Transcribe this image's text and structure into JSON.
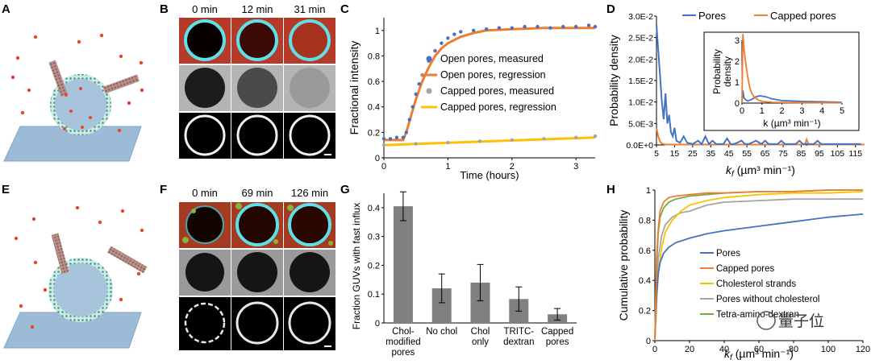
{
  "figure": {
    "panel_letters": [
      "A",
      "B",
      "C",
      "D",
      "E",
      "F",
      "G",
      "H"
    ],
    "watermark": "量子位",
    "colors": {
      "pores": "#4472C4",
      "capped": "#ED7D31",
      "capped_measured": "#A5A5A5",
      "capped_regression": "#FFC000",
      "chol_strands": "#FFC000",
      "no_chol": "#A5A5A5",
      "amino": "#70AD47",
      "bar": "#808080"
    }
  },
  "panel_b": {
    "times": [
      "0 min",
      "12 min",
      "31 min"
    ]
  },
  "panel_f": {
    "times": [
      "0 min",
      "69 min",
      "126 min"
    ]
  },
  "chart_data": [
    {
      "id": "C",
      "type": "line",
      "xlabel": "Time (hours)",
      "ylabel": "Fractional intensity",
      "xlim": [
        0,
        3.3
      ],
      "ylim": [
        0,
        1.1
      ],
      "xticks": [
        0,
        1,
        2,
        3
      ],
      "yticks": [
        0,
        0.2,
        0.4,
        0.6,
        0.8,
        1
      ],
      "series": [
        {
          "name": "Open pores, measured",
          "style": "markers",
          "x": [
            0.0,
            0.1,
            0.2,
            0.3,
            0.35,
            0.4,
            0.45,
            0.5,
            0.55,
            0.6,
            0.7,
            0.8,
            0.9,
            1.0,
            1.1,
            1.2,
            1.4,
            1.6,
            1.8,
            2.0,
            2.2,
            2.4,
            2.6,
            2.8,
            3.0,
            3.2,
            3.3
          ],
          "y": [
            0.15,
            0.15,
            0.16,
            0.16,
            0.2,
            0.3,
            0.4,
            0.5,
            0.58,
            0.65,
            0.76,
            0.84,
            0.9,
            0.94,
            0.97,
            0.99,
            1.0,
            1.01,
            1.02,
            1.02,
            1.03,
            1.03,
            1.02,
            1.03,
            1.03,
            1.04,
            1.03
          ]
        },
        {
          "name": "Open pores, regression",
          "style": "line",
          "x": [
            0.0,
            0.3,
            0.35,
            0.4,
            0.5,
            0.6,
            0.7,
            0.8,
            0.9,
            1.0,
            1.2,
            1.4,
            1.6,
            2.0,
            2.5,
            3.0,
            3.3
          ],
          "y": [
            0.14,
            0.14,
            0.2,
            0.29,
            0.46,
            0.6,
            0.71,
            0.8,
            0.86,
            0.9,
            0.95,
            0.98,
            1.0,
            1.01,
            1.02,
            1.02,
            1.02
          ]
        },
        {
          "name": "Capped pores, measured",
          "style": "markers",
          "x": [
            0.0,
            0.5,
            1.0,
            1.5,
            2.0,
            2.5,
            3.0,
            3.3
          ],
          "y": [
            0.1,
            0.11,
            0.12,
            0.13,
            0.14,
            0.15,
            0.16,
            0.17
          ]
        },
        {
          "name": "Capped pores, regression",
          "style": "line",
          "x": [
            0.0,
            3.3
          ],
          "y": [
            0.1,
            0.16
          ]
        }
      ]
    },
    {
      "id": "D",
      "type": "line",
      "xlabel": "k_f (µm³ min⁻¹)",
      "ylabel": "Probability density",
      "legend": "top-right",
      "xlim": [
        5,
        120
      ],
      "ylim": [
        0,
        0.03
      ],
      "xticks": [
        5,
        15,
        25,
        35,
        45,
        55,
        65,
        75,
        85,
        95,
        105,
        115
      ],
      "yticks": [
        "0.0E+0",
        "5.0E-3",
        "1.0E-2",
        "1.5E-2",
        "2.0E-2",
        "2.5E-2",
        "3.0E-2"
      ],
      "series": [
        {
          "name": "Pores",
          "x": [
            5,
            6,
            7,
            8,
            9,
            10,
            11,
            12,
            13,
            14,
            15,
            16,
            18,
            20,
            22,
            25,
            28,
            30,
            32,
            34,
            36,
            38,
            42,
            44,
            46,
            48,
            52,
            54,
            56,
            60,
            63,
            65,
            67,
            72,
            74,
            76,
            82,
            84,
            86,
            88,
            92,
            94,
            96,
            100,
            105,
            110,
            115,
            118
          ],
          "y": [
            0.028,
            0.022,
            0.016,
            0.01,
            0.006,
            0.012,
            0.005,
            0.007,
            0.003,
            0.002,
            0.004,
            0.001,
            0.0005,
            0.002,
            0.0005,
            0.0002,
            0.001,
            0.0002,
            0.002,
            0.0002,
            0.001,
            0.0002,
            0.0002,
            0.0015,
            0.0002,
            0.0002,
            0.001,
            0.0002,
            0.0002,
            0.001,
            0.0002,
            0.001,
            0.0002,
            0.0002,
            0.001,
            0.0002,
            0.0002,
            0.001,
            0.0002,
            0.0002,
            0.0002,
            0.001,
            0.0002,
            0.0002,
            0.0002,
            0.0002,
            0.0002,
            0.0002
          ]
        },
        {
          "name": "Capped pores",
          "x": [
            5,
            6,
            7,
            8,
            10,
            15,
            20,
            30,
            50,
            80,
            87,
            88,
            89,
            90,
            95,
            110,
            120
          ],
          "y": [
            0.004,
            0.002,
            0.0008,
            0.0003,
            0.0001,
            0.0001,
            0.0001,
            0.0001,
            0.0001,
            0.0001,
            0.0001,
            0.0013,
            0.0001,
            0.0001,
            0.0001,
            0.0001,
            0.0001
          ]
        }
      ],
      "inset": {
        "xlabel": "k (µm³ min⁻¹)",
        "ylabel_line1": "Probability",
        "ylabel_line2": "density",
        "xlim": [
          0,
          5
        ],
        "ylim": [
          0,
          3
        ],
        "xticks": [
          0,
          1,
          2,
          3,
          4,
          5
        ],
        "yticks": [
          0,
          1,
          2,
          3
        ],
        "series": [
          {
            "name": "Pores",
            "x": [
              0,
              0.05,
              0.1,
              0.2,
              0.3,
              0.5,
              0.7,
              0.9,
              1.2,
              1.5,
              2,
              3,
              4,
              5
            ],
            "y": [
              0,
              0.6,
              0.25,
              0.15,
              0.1,
              0.18,
              0.3,
              0.35,
              0.3,
              0.2,
              0.12,
              0.08,
              0.06,
              0.04
            ]
          },
          {
            "name": "Capped pores",
            "x": [
              0,
              0.05,
              0.1,
              0.2,
              0.3,
              0.4,
              0.5,
              0.6,
              0.8,
              1,
              1.5,
              2,
              3,
              5
            ],
            "y": [
              0,
              3.3,
              2.6,
              1.8,
              1.2,
              0.7,
              0.45,
              0.3,
              0.15,
              0.08,
              0.04,
              0.03,
              0.02,
              0.01
            ]
          }
        ]
      }
    },
    {
      "id": "G",
      "type": "bar",
      "ylabel": "Fraction GUVs with fast influx",
      "ylim": [
        0,
        0.45
      ],
      "yticks": [
        0,
        0.1,
        0.2,
        0.3,
        0.4
      ],
      "categories": [
        [
          "Chol-",
          "modified",
          "pores"
        ],
        [
          "No chol"
        ],
        [
          "Chol",
          "only"
        ],
        [
          "TRITC-",
          "dextran"
        ],
        [
          "Capped",
          "pores"
        ]
      ],
      "values": [
        0.405,
        0.12,
        0.14,
        0.083,
        0.03
      ],
      "errors": [
        0.05,
        0.05,
        0.063,
        0.042,
        0.02
      ]
    },
    {
      "id": "H",
      "type": "line",
      "xlabel": "k_f (µm³ min⁻¹)",
      "ylabel": "Cumulative probability",
      "legend": "bottom-right",
      "xlim": [
        0,
        120
      ],
      "ylim": [
        0,
        1
      ],
      "xticks": [
        0,
        20,
        40,
        60,
        80,
        100,
        120
      ],
      "yticks": [
        0,
        0.2,
        0.4,
        0.6,
        0.8,
        1
      ],
      "series": [
        {
          "name": "Pores",
          "x": [
            0,
            1,
            2,
            3,
            5,
            8,
            12,
            20,
            30,
            40,
            60,
            80,
            100,
            120
          ],
          "y": [
            0,
            0.3,
            0.45,
            0.52,
            0.58,
            0.62,
            0.65,
            0.68,
            0.71,
            0.73,
            0.76,
            0.79,
            0.82,
            0.84
          ]
        },
        {
          "name": "Capped pores",
          "x": [
            0,
            1,
            2,
            3,
            5,
            8,
            12,
            20,
            30,
            40,
            60,
            80,
            100,
            120
          ],
          "y": [
            0,
            0.55,
            0.75,
            0.86,
            0.92,
            0.95,
            0.96,
            0.97,
            0.98,
            0.98,
            0.99,
            0.99,
            1.0,
            1.0
          ]
        },
        {
          "name": "Cholesterol strands",
          "x": [
            0,
            1,
            2,
            4,
            6,
            10,
            15,
            20,
            30,
            40,
            60,
            80,
            100,
            120
          ],
          "y": [
            0,
            0.25,
            0.45,
            0.62,
            0.72,
            0.8,
            0.86,
            0.9,
            0.93,
            0.95,
            0.97,
            0.98,
            0.98,
            0.99
          ]
        },
        {
          "name": "Pores without cholesterol",
          "x": [
            0,
            1,
            2,
            4,
            6,
            10,
            15,
            20,
            25,
            30,
            40,
            60,
            80,
            100,
            120
          ],
          "y": [
            0,
            0.35,
            0.55,
            0.7,
            0.77,
            0.82,
            0.85,
            0.86,
            0.88,
            0.9,
            0.92,
            0.93,
            0.94,
            0.94,
            0.94
          ]
        },
        {
          "name": "Tetra-amino-dextran",
          "x": [
            0,
            1,
            2,
            3,
            5,
            8,
            12,
            20,
            30,
            40,
            60,
            80,
            100,
            120
          ],
          "y": [
            0,
            0.5,
            0.72,
            0.82,
            0.88,
            0.92,
            0.94,
            0.96,
            0.97,
            0.98,
            0.99,
            0.99,
            1.0,
            1.0
          ]
        }
      ]
    }
  ]
}
